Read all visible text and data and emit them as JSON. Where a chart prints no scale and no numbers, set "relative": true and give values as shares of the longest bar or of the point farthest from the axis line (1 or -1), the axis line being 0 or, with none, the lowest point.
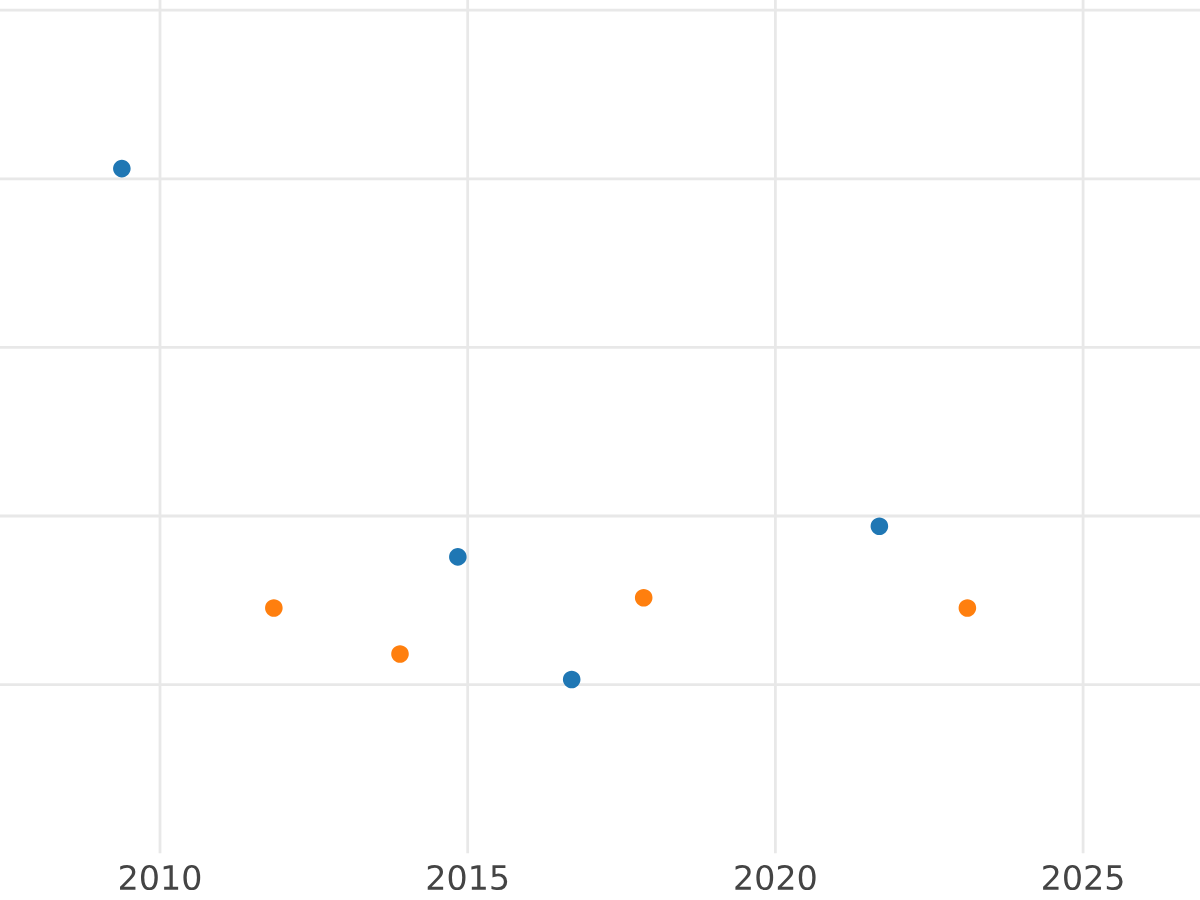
{
  "chart_data": {
    "type": "scatter",
    "relative": true,
    "xlim": [
      2007.4,
      2026.9
    ],
    "xticks": [
      2010,
      2015,
      2020,
      2025
    ],
    "grid": true,
    "marker": "circle",
    "series": [
      {
        "color": "#1f77b4",
        "x": [
          2009.38,
          2014.84,
          2016.69,
          2021.69
        ],
        "values": [
          1,
          0.24,
          0,
          0.3
        ]
      },
      {
        "color": "#ff7f0e",
        "x": [
          2011.85,
          2013.9,
          2017.86,
          2023.12
        ],
        "values": [
          0.14,
          0.05,
          0.16,
          0.14
        ]
      }
    ]
  }
}
